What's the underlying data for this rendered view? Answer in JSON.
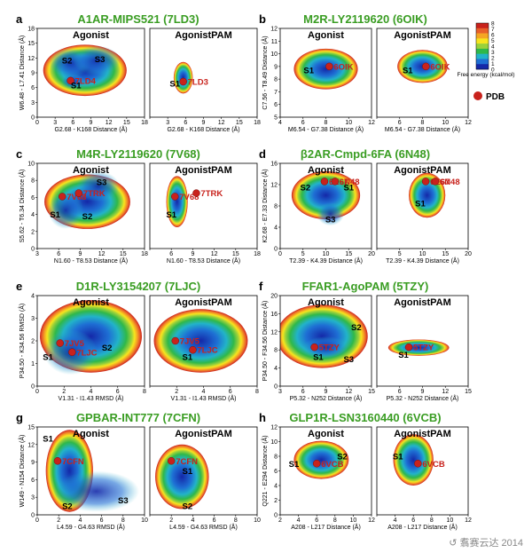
{
  "colorbar": {
    "title": "Free energy (kcal/mol)",
    "ticks": [
      "8",
      "7",
      "6",
      "5",
      "4",
      "3",
      "2",
      "1",
      "0"
    ],
    "colors": [
      "#c8221c",
      "#e8602a",
      "#f5a623",
      "#f7e51e",
      "#9ad13a",
      "#2fb84a",
      "#22b3c9",
      "#1e6fd4",
      "#1428a8"
    ],
    "pdb_label": "PDB"
  },
  "watermark": "↺ 翥赛云达 2014",
  "chart_data": [
    {
      "letter": "a",
      "title": "A1AR-MIPS521 (7LD3)",
      "type": "heatmap",
      "xlabel": "G2.68 - K168 Distance (Å)",
      "ylabel": "W6.48 - L7.41 Distance (Å)",
      "xlim": [
        0,
        18
      ],
      "ylim": [
        0,
        18
      ],
      "xticks": [
        0,
        3,
        6,
        9,
        12,
        15,
        18
      ],
      "yticks": [
        0,
        3,
        6,
        9,
        12,
        15,
        18
      ],
      "views": [
        {
          "type": "Agonist",
          "regions": [
            {
              "cx": 8,
              "cy": 9.5,
              "rx": 7,
              "ry": 5.2
            },
            {
              "cx": 5.5,
              "cy": 11,
              "rx": 3.5,
              "ry": 3
            },
            {
              "cx": 10,
              "cy": 11.5,
              "rx": 4,
              "ry": 3
            },
            {
              "cx": 6,
              "cy": 7.2,
              "rx": 2,
              "ry": 1.5
            }
          ],
          "states": [
            {
              "label": "S2",
              "x": 5,
              "y": 11.5
            },
            {
              "label": "S3",
              "x": 10.5,
              "y": 11.8
            },
            {
              "label": "S1",
              "x": 6.5,
              "y": 6.5
            }
          ],
          "pdb": [
            {
              "label": "7LD4",
              "x": 5.6,
              "y": 7.4
            }
          ]
        },
        {
          "type": "AgonistPAM",
          "regions": [
            {
              "cx": 5.6,
              "cy": 8,
              "rx": 1.6,
              "ry": 3.2
            }
          ],
          "states": [
            {
              "label": "S1",
              "x": 4.2,
              "y": 6.8
            }
          ],
          "pdb": [
            {
              "label": "7LD3",
              "x": 5.6,
              "y": 7.2
            }
          ]
        }
      ]
    },
    {
      "letter": "b",
      "title": "M2R-LY2119620 (6OIK)",
      "type": "heatmap",
      "xlabel": "M6.54 - G7.38 Distance (Å)",
      "ylabel": "C7.56 - T8.49 Distance (Å)",
      "xlim": [
        4,
        12
      ],
      "ylim": [
        5,
        12
      ],
      "xticks": [
        4,
        6,
        8,
        10,
        12
      ],
      "yticks": [
        5,
        6,
        7,
        8,
        9,
        10,
        11,
        12
      ],
      "views": [
        {
          "type": "Agonist",
          "regions": [
            {
              "cx": 8,
              "cy": 8.8,
              "rx": 2.8,
              "ry": 1.6
            }
          ],
          "states": [
            {
              "label": "S1",
              "x": 6.5,
              "y": 8.7
            }
          ],
          "pdb": [
            {
              "label": "6OIK",
              "x": 8.3,
              "y": 9
            }
          ]
        },
        {
          "type": "AgonistPAM",
          "regions": [
            {
              "cx": 8,
              "cy": 9,
              "rx": 2.2,
              "ry": 1.3
            }
          ],
          "states": [
            {
              "label": "S1",
              "x": 6.7,
              "y": 8.7
            }
          ],
          "pdb": [
            {
              "label": "6OIK",
              "x": 8.3,
              "y": 9
            }
          ]
        }
      ]
    },
    {
      "letter": "c",
      "title": "M4R-LY2119620 (7V68)",
      "type": "heatmap",
      "xlabel": "N1.60 - T8.53 Distance (Å)",
      "ylabel": "S5.62 - T6.34 Distance (Å)",
      "xlim": [
        3,
        18
      ],
      "ylim": [
        0,
        10
      ],
      "xticks": [
        3,
        6,
        9,
        12,
        15,
        18
      ],
      "yticks": [
        0,
        2,
        4,
        6,
        8,
        10
      ],
      "views": [
        {
          "type": "Agonist",
          "regions": [
            {
              "cx": 10,
              "cy": 5.5,
              "rx": 6,
              "ry": 3.2
            },
            {
              "cx": 11.5,
              "cy": 7.3,
              "rx": 3,
              "ry": 1.8
            },
            {
              "cx": 7,
              "cy": 4.5,
              "rx": 2.5,
              "ry": 2.2
            }
          ],
          "states": [
            {
              "label": "S3",
              "x": 12,
              "y": 7.8
            },
            {
              "label": "S1",
              "x": 5.5,
              "y": 4
            },
            {
              "label": "S2",
              "x": 10,
              "y": 3.8
            }
          ],
          "pdb": [
            {
              "label": "7V68",
              "x": 6.5,
              "y": 6.1
            },
            {
              "label": "7TRK",
              "x": 8.8,
              "y": 6.5
            }
          ]
        },
        {
          "type": "AgonistPAM",
          "regions": [
            {
              "cx": 6.8,
              "cy": 5.5,
              "rx": 1.5,
              "ry": 3
            }
          ],
          "states": [
            {
              "label": "S1",
              "x": 6,
              "y": 4
            }
          ],
          "pdb": [
            {
              "label": "7V68",
              "x": 6.5,
              "y": 6.1
            },
            {
              "label": "7TRK",
              "x": 9.5,
              "y": 6.5
            }
          ]
        }
      ]
    },
    {
      "letter": "d",
      "title": "β2AR-Cmpd-6FA (6N48)",
      "type": "heatmap",
      "xlabel": "T2.39 - K4.39 Distance (Å)",
      "ylabel": "K2.68 - E7.33 Distance (Å)",
      "xlim": [
        0,
        20
      ],
      "ylim": [
        0,
        16
      ],
      "xticks": [
        0,
        5,
        10,
        15,
        20
      ],
      "yticks": [
        0,
        4,
        8,
        12,
        16
      ],
      "views": [
        {
          "type": "Agonist",
          "regions": [
            {
              "cx": 10,
              "cy": 10,
              "rx": 7.5,
              "ry": 4.5
            },
            {
              "cx": 11,
              "cy": 6.5,
              "rx": 3,
              "ry": 2.2
            }
          ],
          "states": [
            {
              "label": "S2",
              "x": 5.5,
              "y": 11.5
            },
            {
              "label": "S1",
              "x": 15,
              "y": 11.5
            },
            {
              "label": "S3",
              "x": 11,
              "y": 5.5
            }
          ],
          "pdb": [
            {
              "label": "6E67",
              "x": 9.7,
              "y": 12.6
            },
            {
              "label": "6N48",
              "x": 12,
              "y": 12.6
            }
          ]
        },
        {
          "type": "AgonistPAM",
          "regions": [
            {
              "cx": 11,
              "cy": 10,
              "rx": 4,
              "ry": 4.2
            }
          ],
          "states": [
            {
              "label": "S1",
              "x": 9.5,
              "y": 8.5
            }
          ],
          "pdb": [
            {
              "label": "6E67",
              "x": 10.7,
              "y": 12.6
            },
            {
              "label": "6N48",
              "x": 12.8,
              "y": 12.6
            }
          ]
        }
      ]
    },
    {
      "letter": "e",
      "title": "D1R-LY3154207 (7LJC)",
      "type": "heatmap",
      "xlabel": "V1.31 - I1.43 RMSD (Å)",
      "ylabel": "P34.50 - K34.56 RMSD (Å)",
      "xlim": [
        0,
        8
      ],
      "ylim": [
        0,
        4
      ],
      "xticks": [
        0,
        2,
        4,
        6,
        8
      ],
      "yticks": [
        0,
        1,
        2,
        3,
        4
      ],
      "views": [
        {
          "type": "Agonist",
          "regions": [
            {
              "cx": 4,
              "cy": 2.2,
              "rx": 3.8,
              "ry": 1.6
            },
            {
              "cx": 2.5,
              "cy": 1.5,
              "rx": 2,
              "ry": 1
            }
          ],
          "states": [
            {
              "label": "S1",
              "x": 0.8,
              "y": 1.3
            },
            {
              "label": "S2",
              "x": 5.2,
              "y": 1.7
            }
          ],
          "pdb": [
            {
              "label": "7JV5",
              "x": 1.7,
              "y": 1.9
            },
            {
              "label": "7LJC",
              "x": 2.6,
              "y": 1.5
            }
          ]
        },
        {
          "type": "AgonistPAM",
          "regions": [
            {
              "cx": 3.8,
              "cy": 2,
              "rx": 3.5,
              "ry": 1.4
            }
          ],
          "states": [
            {
              "label": "S1",
              "x": 2.8,
              "y": 1.3
            }
          ],
          "pdb": [
            {
              "label": "7JV5",
              "x": 1.9,
              "y": 2
            },
            {
              "label": "7LJC",
              "x": 3.2,
              "y": 1.6
            }
          ]
        }
      ]
    },
    {
      "letter": "f",
      "title": "FFAR1-AgoPAM (5TZY)",
      "type": "heatmap",
      "xlabel": "P5.32 - N252 Distance (Å)",
      "ylabel": "P34.50 - F34.56 Distance (Å)",
      "xlim": [
        3,
        15
      ],
      "ylim": [
        0,
        20
      ],
      "xticks": [
        3,
        6,
        9,
        12,
        15
      ],
      "yticks": [
        0,
        4,
        8,
        12,
        16,
        20
      ],
      "views": [
        {
          "type": "Agonist",
          "regions": [
            {
              "cx": 8.5,
              "cy": 11,
              "rx": 6,
              "ry": 7
            },
            {
              "cx": 9,
              "cy": 8.5,
              "rx": 3,
              "ry": 2.5
            }
          ],
          "states": [
            {
              "label": "S2",
              "x": 13,
              "y": 13
            },
            {
              "label": "S1",
              "x": 8,
              "y": 6.5
            },
            {
              "label": "S3",
              "x": 12,
              "y": 6
            }
          ],
          "pdb": [
            {
              "label": "5TZY",
              "x": 7.5,
              "y": 8.6
            }
          ]
        },
        {
          "type": "AgonistPAM",
          "regions": [
            {
              "cx": 8.5,
              "cy": 8.5,
              "rx": 4,
              "ry": 1.8
            }
          ],
          "states": [
            {
              "label": "S1",
              "x": 6.5,
              "y": 7
            }
          ],
          "pdb": [
            {
              "label": "5TZY",
              "x": 7.2,
              "y": 8.6
            }
          ]
        }
      ]
    },
    {
      "letter": "g",
      "title": "GPBAR-INT777 (7CFN)",
      "type": "heatmap",
      "xlabel": "L4.59 - G4.63 RMSD (Å)",
      "ylabel": "W149 - N154 Distance (Å)",
      "xlim": [
        0,
        10
      ],
      "ylim": [
        0,
        15
      ],
      "xticks": [
        0,
        2,
        4,
        6,
        8,
        10
      ],
      "yticks": [
        0,
        3,
        6,
        9,
        12,
        15
      ],
      "views": [
        {
          "type": "Agonist",
          "regions": [
            {
              "cx": 3,
              "cy": 7.5,
              "rx": 2.2,
              "ry": 7
            },
            {
              "cx": 5.5,
              "cy": 4,
              "rx": 4,
              "ry": 3.5
            }
          ],
          "states": [
            {
              "label": "S1",
              "x": 1,
              "y": 13
            },
            {
              "label": "S2",
              "x": 2.8,
              "y": 1.5
            },
            {
              "label": "S3",
              "x": 8,
              "y": 2.5
            }
          ],
          "pdb": [
            {
              "label": "7CFN",
              "x": 1.9,
              "y": 9.2
            }
          ]
        },
        {
          "type": "AgonistPAM",
          "regions": [
            {
              "cx": 3,
              "cy": 6.5,
              "rx": 2.5,
              "ry": 5.5
            }
          ],
          "states": [
            {
              "label": "S1",
              "x": 3.5,
              "y": 7.5
            },
            {
              "label": "S2",
              "x": 3.5,
              "y": 1.5
            }
          ],
          "pdb": [
            {
              "label": "7CFN",
              "x": 2,
              "y": 9.2
            }
          ]
        }
      ]
    },
    {
      "letter": "h",
      "title": "GLP1R-LSN3160440 (6VCB)",
      "type": "heatmap",
      "xlabel": "A208 - L217 Distance (Å)",
      "ylabel": "Q221 - E294 Distance (Å)",
      "xlim": [
        2,
        12
      ],
      "ylim": [
        0,
        12
      ],
      "xticks": [
        2,
        4,
        6,
        8,
        10,
        12
      ],
      "yticks": [
        0,
        2,
        4,
        6,
        8,
        10,
        12
      ],
      "views": [
        {
          "type": "Agonist",
          "regions": [
            {
              "cx": 6.5,
              "cy": 7.5,
              "rx": 3,
              "ry": 2.6
            }
          ],
          "states": [
            {
              "label": "S1",
              "x": 3.5,
              "y": 7
            },
            {
              "label": "S2",
              "x": 8.8,
              "y": 8
            }
          ],
          "pdb": [
            {
              "label": "6VCB",
              "x": 6,
              "y": 7
            }
          ]
        },
        {
          "type": "AgonistPAM",
          "regions": [
            {
              "cx": 6,
              "cy": 7.5,
              "rx": 2.2,
              "ry": 3.5
            }
          ],
          "states": [
            {
              "label": "S1",
              "x": 4.3,
              "y": 8
            }
          ],
          "pdb": [
            {
              "label": "6VCB",
              "x": 6.5,
              "y": 7
            }
          ]
        }
      ]
    }
  ]
}
